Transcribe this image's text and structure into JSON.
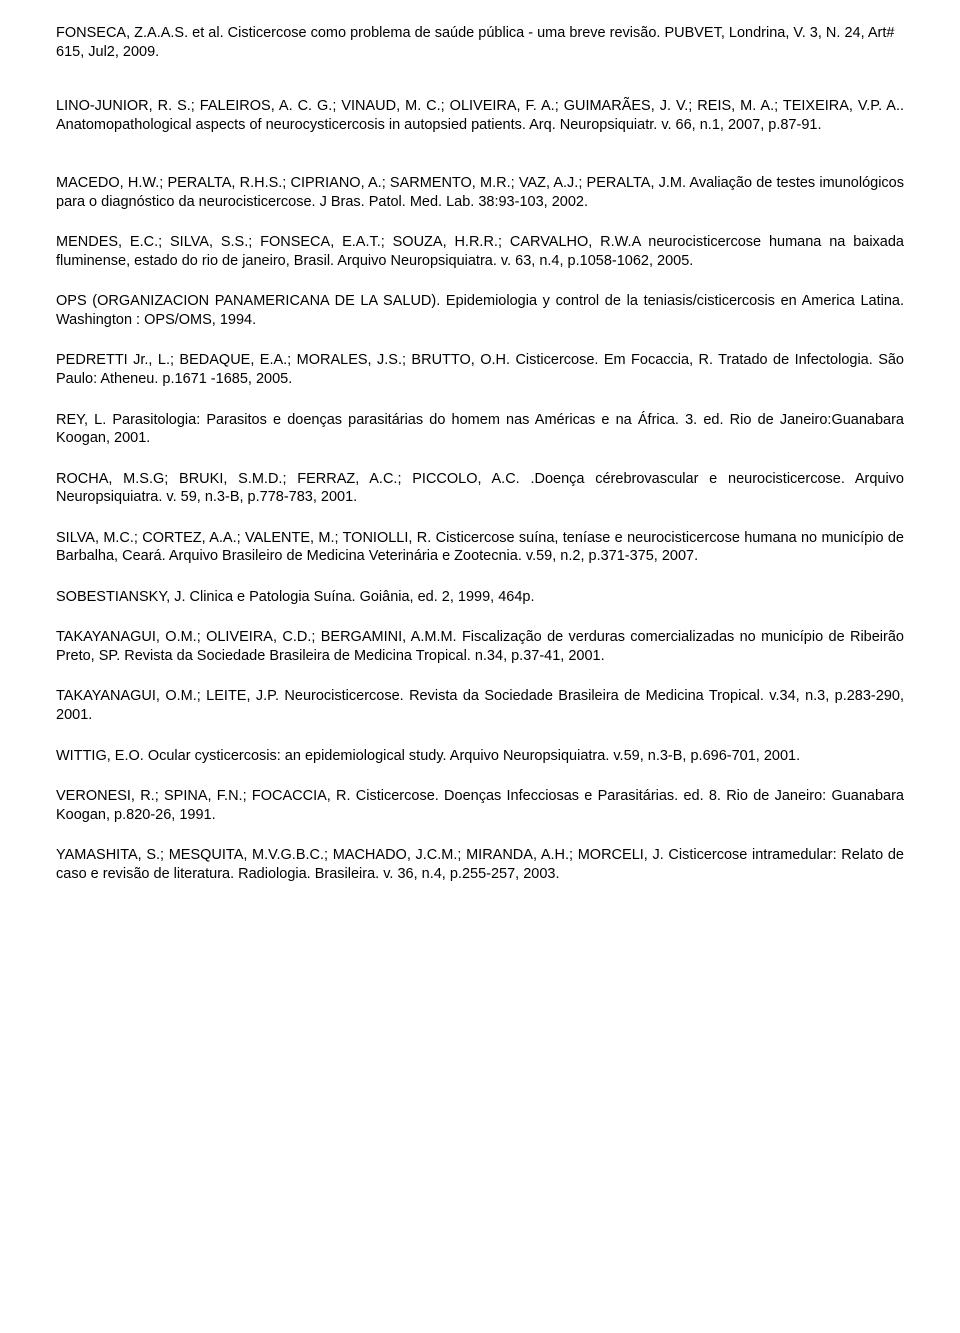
{
  "header": "FONSECA, Z.A.A.S. et al. Cisticercose como problema de saúde pública - uma breve revisão. PUBVET, Londrina, V. 3, N. 24, Art# 615, Jul2, 2009.",
  "refs": [
    "LINO-JUNIOR, R. S.; FALEIROS, A. C. G.; VINAUD, M. C.; OLIVEIRA, F. A.; GUIMARÃES, J. V.; REIS, M. A.; TEIXEIRA, V.P. A.. Anatomopathological aspects of neurocysticercosis in autopsied patients. Arq. Neuropsiquiatr. v. 66, n.1, 2007, p.87-91.",
    "MACEDO, H.W.; PERALTA, R.H.S.; CIPRIANO, A.; SARMENTO, M.R.; VAZ, A.J.; PERALTA, J.M. Avaliação de testes imunológicos para o diagnóstico da neurocisticercose. J Bras. Patol. Med. Lab. 38:93-103, 2002.",
    "MENDES, E.C.; SILVA, S.S.; FONSECA, E.A.T.; SOUZA, H.R.R.; CARVALHO, R.W.A neurocisticercose humana na baixada fluminense, estado do rio de janeiro, Brasil. Arquivo Neuropsiquiatra. v. 63, n.4, p.1058-1062, 2005.",
    "OPS (ORGANIZACION PANAMERICANA DE LA SALUD). Epidemiologia y control de la teniasis/cisticercosis en America Latina. Washington : OPS/OMS, 1994.",
    "PEDRETTI Jr., L.; BEDAQUE, E.A.; MORALES, J.S.; BRUTTO, O.H. Cisticercose. Em Focaccia, R. Tratado de Infectologia. São Paulo: Atheneu. p.1671 -1685, 2005.",
    "REY, L. Parasitologia: Parasitos e doenças parasitárias do homem nas Américas e na África. 3. ed. Rio de Janeiro:Guanabara Koogan, 2001.",
    "ROCHA, M.S.G; BRUKI, S.M.D.; FERRAZ, A.C.; PICCOLO, A.C. .Doença cérebrovascular e neurocisticercose. Arquivo Neuropsiquiatra. v. 59, n.3-B, p.778-783, 2001.",
    "SILVA, M.C.; CORTEZ, A.A.; VALENTE, M.; TONIOLLI, R. Cisticercose suína, teníase e neurocisticercose humana no município de Barbalha, Ceará. Arquivo Brasileiro de Medicina Veterinária e Zootecnia. v.59, n.2, p.371-375, 2007.",
    "SOBESTIANSKY, J. Clinica e Patologia Suína. Goiânia, ed. 2, 1999, 464p.",
    "TAKAYANAGUI, O.M.; OLIVEIRA, C.D.; BERGAMINI, A.M.M. Fiscalização de verduras comercializadas no município de Ribeirão Preto, SP. Revista da Sociedade Brasileira de Medicina Tropical. n.34, p.37-41, 2001.",
    "TAKAYANAGUI, O.M.; LEITE, J.P. Neurocisticercose. Revista da Sociedade Brasileira de Medicina Tropical. v.34, n.3, p.283-290, 2001.",
    "WITTIG, E.O. Ocular cysticercosis: an epidemiological study. Arquivo Neuropsiquiatra. v.59, n.3-B, p.696-701, 2001.",
    "VERONESI, R.; SPINA, F.N.; FOCACCIA, R. Cisticercose. Doenças Infecciosas e Parasitárias. ed. 8. Rio de Janeiro: Guanabara Koogan, p.820-26, 1991.",
    "YAMASHITA, S.; MESQUITA, M.V.G.B.C.; MACHADO, J.C.M.; MIRANDA, A.H.; MORCELI, J. Cisticercose intramedular: Relato de caso e revisão de literatura. Radiologia. Brasileira. v. 36, n.4, p.255-257, 2003."
  ],
  "extra_gap_after": [
    0
  ]
}
